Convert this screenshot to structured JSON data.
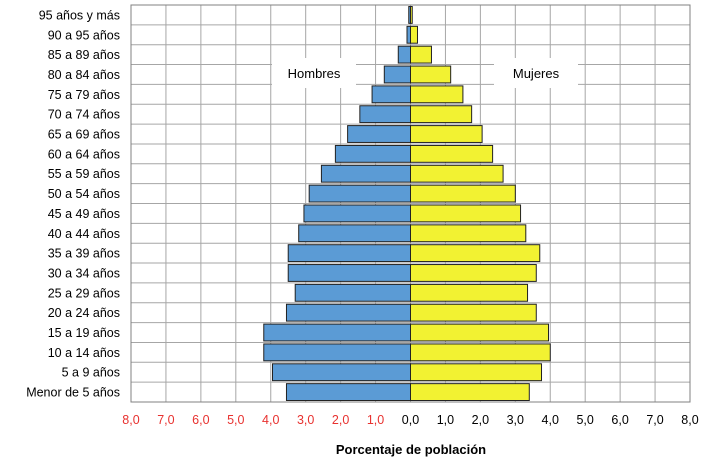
{
  "chart_data": {
    "type": "bar",
    "orientation": "horizontal",
    "subtype": "population-pyramid",
    "categories": [
      "95 años y más",
      "90 a 95 años",
      "85 a 89 años",
      "80 a 84 años",
      "75 a 79 años",
      "70 a 74 años",
      "65 a 69 años",
      "60 a 64 años",
      "55 a 59 años",
      "50 a 54 años",
      "45 a 49 años",
      "40 a 44 años",
      "35 a 39 años",
      "30 a 34 años",
      "25 a 29 años",
      "20 a 24 años",
      "15 a 19 años",
      "10 a 14 años",
      "5 a 9 años",
      "Menor de 5 años"
    ],
    "series": [
      {
        "name": "Hombres",
        "color": "#5b9bd5",
        "side": "left",
        "values": [
          0.05,
          0.1,
          0.35,
          0.75,
          1.1,
          1.45,
          1.8,
          2.15,
          2.55,
          2.9,
          3.05,
          3.2,
          3.5,
          3.5,
          3.3,
          3.55,
          4.2,
          4.2,
          3.95,
          3.55
        ]
      },
      {
        "name": "Mujeres",
        "color": "#f2f232",
        "side": "right",
        "values": [
          0.05,
          0.2,
          0.6,
          1.15,
          1.5,
          1.75,
          2.05,
          2.35,
          2.65,
          3.0,
          3.15,
          3.3,
          3.7,
          3.6,
          3.35,
          3.6,
          3.95,
          4.0,
          3.75,
          3.4
        ]
      }
    ],
    "xticks": [
      "8,0",
      "7,0",
      "6,0",
      "5,0",
      "4,0",
      "3,0",
      "2,0",
      "1,0",
      "0,0",
      "1,0",
      "2,0",
      "3,0",
      "4,0",
      "5,0",
      "6,0",
      "7,0",
      "8,0"
    ],
    "xlim": [
      -8,
      8
    ],
    "xlabel": "Porcentaje de población",
    "ylabel": "",
    "title": "",
    "grid": true,
    "legend": "inside-top"
  },
  "colors": {
    "left_tick_color": "#e8312f",
    "right_tick_color": "#000000",
    "grid_color": "#a6a6a6",
    "bar_stroke": "#222222"
  }
}
